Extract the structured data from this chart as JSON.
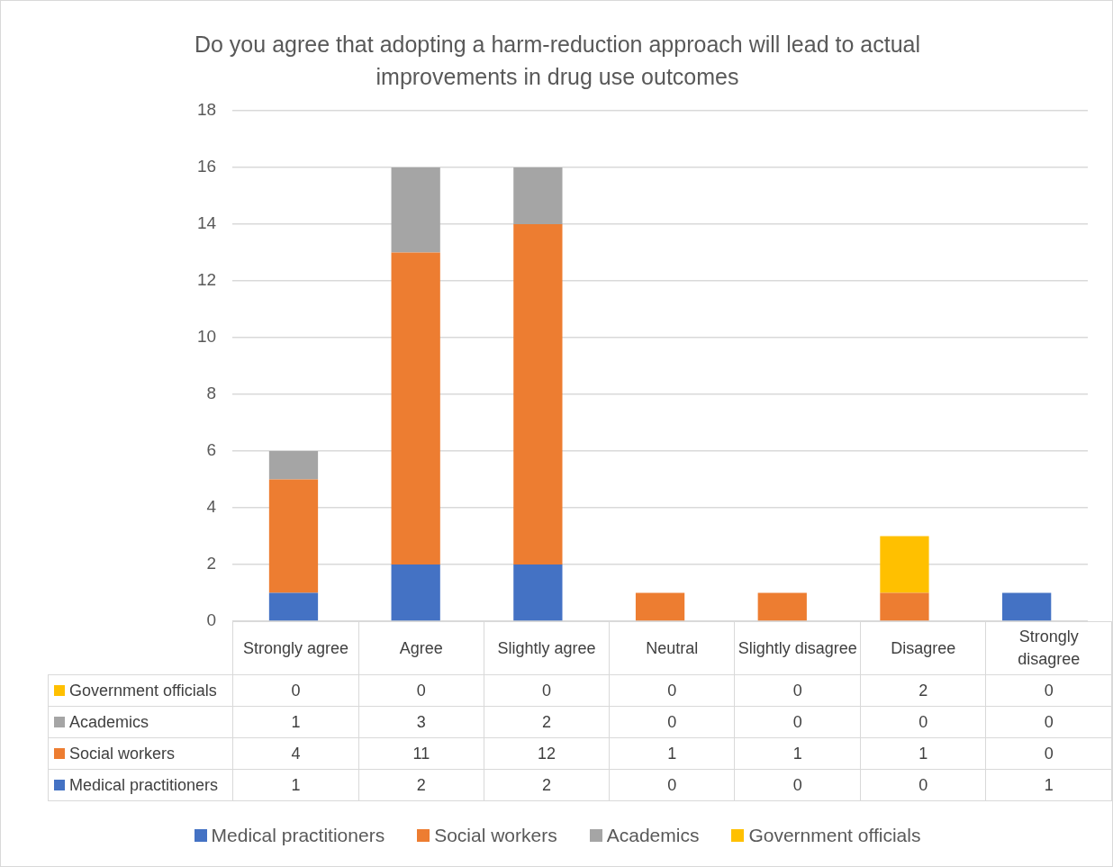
{
  "chart_data": {
    "type": "bar",
    "stacked": true,
    "title": "Do you agree that adopting a harm-reduction approach will lead to actual improvements in drug use outcomes",
    "categories": [
      "Strongly agree",
      "Agree",
      "Slightly agree",
      "Neutral",
      "Slightly disagree",
      "Disagree",
      "Strongly disagree"
    ],
    "series": [
      {
        "name": "Medical practitioners",
        "color": "#4472c4",
        "values": [
          1,
          2,
          2,
          0,
          0,
          0,
          1
        ]
      },
      {
        "name": "Social workers",
        "color": "#ed7d31",
        "values": [
          4,
          11,
          12,
          1,
          1,
          1,
          0
        ]
      },
      {
        "name": "Academics",
        "color": "#a5a5a5",
        "values": [
          1,
          3,
          2,
          0,
          0,
          0,
          0
        ]
      },
      {
        "name": "Government officials",
        "color": "#ffc000",
        "values": [
          0,
          0,
          0,
          0,
          0,
          2,
          0
        ]
      }
    ],
    "ylim": [
      0,
      18
    ],
    "yticks": [
      0,
      2,
      4,
      6,
      8,
      10,
      12,
      14,
      16,
      18
    ],
    "grid": "y",
    "legend": "bottom",
    "data_labels": true
  }
}
